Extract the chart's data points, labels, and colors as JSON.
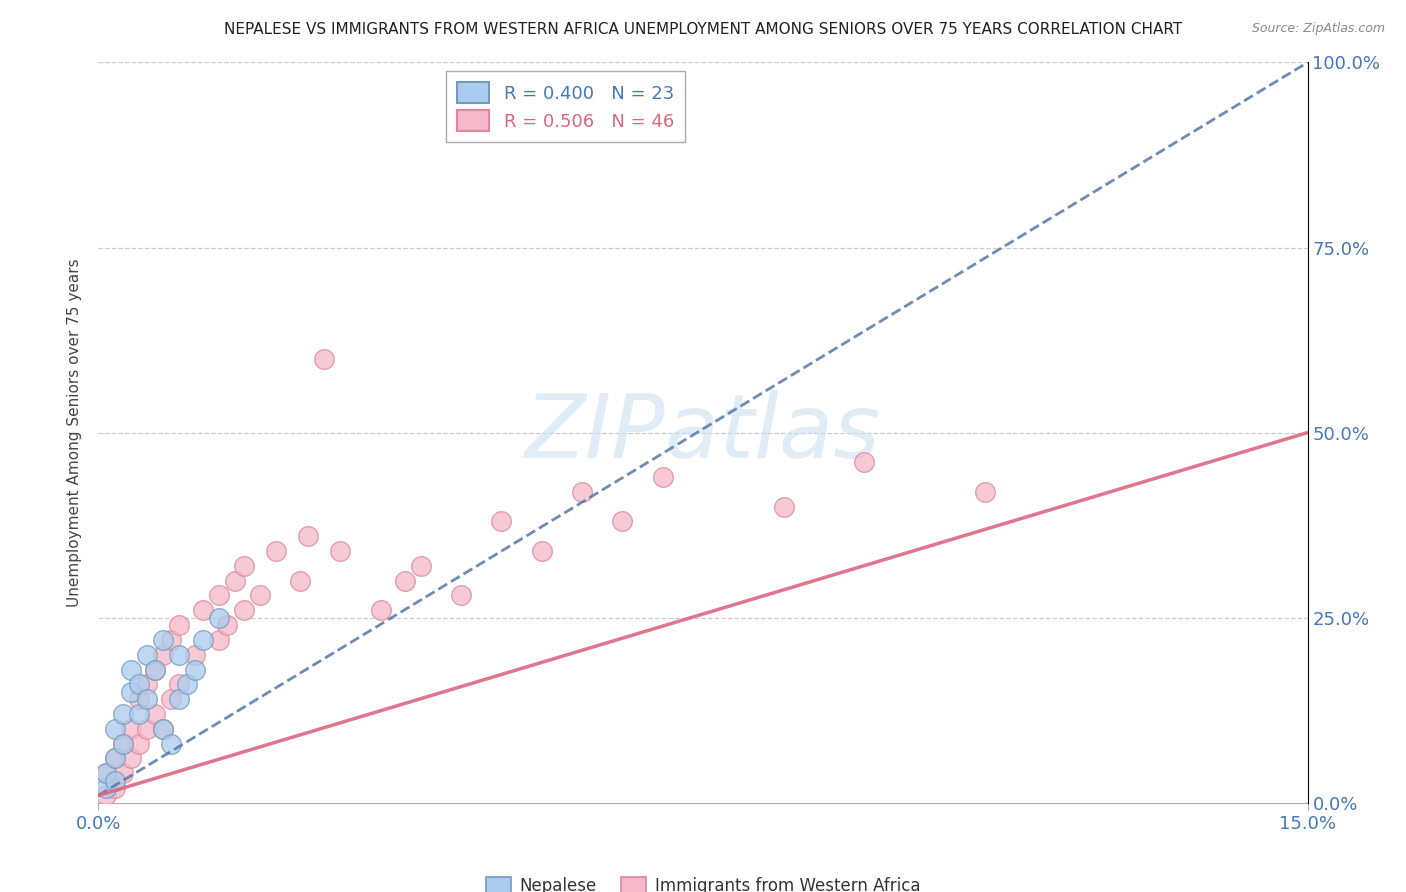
{
  "title": "NEPALESE VS IMMIGRANTS FROM WESTERN AFRICA UNEMPLOYMENT AMONG SENIORS OVER 75 YEARS CORRELATION CHART",
  "source": "Source: ZipAtlas.com",
  "ylabel": "Unemployment Among Seniors over 75 years",
  "legend_nepalese": "R = 0.400   N = 23",
  "legend_western_africa": "R = 0.506   N = 46",
  "nepalese_color": "#aaccee",
  "nepalese_edge_color": "#7799bb",
  "nepalese_line_color": "#5577aa",
  "western_africa_color": "#f5b8c8",
  "western_africa_edge_color": "#dd8899",
  "western_africa_line_color": "#dd6680",
  "watermark_text": "ZIPatlas",
  "watermark_color": "#cce0f0",
  "nepalese_x": [
    0.001,
    0.001,
    0.002,
    0.002,
    0.002,
    0.003,
    0.003,
    0.004,
    0.004,
    0.005,
    0.005,
    0.006,
    0.006,
    0.007,
    0.008,
    0.008,
    0.009,
    0.01,
    0.01,
    0.011,
    0.012,
    0.013,
    0.015
  ],
  "nepalese_y": [
    0.02,
    0.04,
    0.03,
    0.06,
    0.1,
    0.08,
    0.12,
    0.15,
    0.18,
    0.12,
    0.16,
    0.14,
    0.2,
    0.18,
    0.1,
    0.22,
    0.08,
    0.14,
    0.2,
    0.16,
    0.18,
    0.22,
    0.25
  ],
  "western_africa_x": [
    0.001,
    0.001,
    0.002,
    0.002,
    0.003,
    0.003,
    0.004,
    0.004,
    0.005,
    0.005,
    0.006,
    0.006,
    0.007,
    0.007,
    0.008,
    0.008,
    0.009,
    0.009,
    0.01,
    0.01,
    0.012,
    0.013,
    0.015,
    0.015,
    0.016,
    0.017,
    0.018,
    0.018,
    0.02,
    0.022,
    0.025,
    0.026,
    0.028,
    0.03,
    0.035,
    0.038,
    0.04,
    0.045,
    0.05,
    0.055,
    0.06,
    0.065,
    0.07,
    0.085,
    0.095,
    0.11
  ],
  "western_africa_y": [
    0.01,
    0.04,
    0.02,
    0.06,
    0.04,
    0.08,
    0.06,
    0.1,
    0.08,
    0.14,
    0.1,
    0.16,
    0.12,
    0.18,
    0.1,
    0.2,
    0.14,
    0.22,
    0.16,
    0.24,
    0.2,
    0.26,
    0.22,
    0.28,
    0.24,
    0.3,
    0.26,
    0.32,
    0.28,
    0.34,
    0.3,
    0.36,
    0.6,
    0.34,
    0.26,
    0.3,
    0.32,
    0.28,
    0.38,
    0.34,
    0.42,
    0.38,
    0.44,
    0.4,
    0.46,
    0.42
  ],
  "nepalese_line_x0": 0.0,
  "nepalese_line_y0": 0.01,
  "nepalese_line_x1": 0.15,
  "nepalese_line_y1": 1.0,
  "western_line_x0": 0.0,
  "western_line_y0": 0.01,
  "western_line_x1": 0.15,
  "western_line_y1": 0.5,
  "xlim": [
    0,
    0.15
  ],
  "ylim": [
    0,
    1.0
  ],
  "yticks": [
    0.0,
    0.25,
    0.5,
    0.75,
    1.0
  ],
  "ytick_labels": [
    "0.0%",
    "25.0%",
    "50.0%",
    "75.0%",
    "100.0%"
  ],
  "xtick_left": "0.0%",
  "xtick_right": "15.0%",
  "legend_bottom_nepalese": "Nepalese",
  "legend_bottom_western": "Immigrants from Western Africa"
}
